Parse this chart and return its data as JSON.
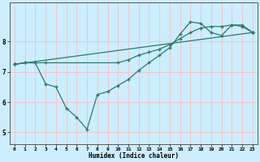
{
  "xlabel": "Humidex (Indice chaleur)",
  "bg_color": "#cceeff",
  "grid_color": "#f5c0c0",
  "line_color": "#2d7a6a",
  "xlim": [
    -0.5,
    23.5
  ],
  "ylim": [
    4.6,
    9.3
  ],
  "xticks": [
    0,
    1,
    2,
    3,
    4,
    5,
    6,
    7,
    8,
    9,
    10,
    11,
    12,
    13,
    14,
    15,
    16,
    17,
    18,
    19,
    20,
    21,
    22,
    23
  ],
  "yticks": [
    5,
    6,
    7,
    8
  ],
  "line1_x": [
    0,
    1,
    2,
    3,
    4,
    5,
    6,
    7,
    8,
    9,
    10,
    11,
    12,
    13,
    14,
    15,
    16,
    17,
    18,
    19,
    20,
    21,
    22,
    23
  ],
  "line1_y": [
    7.25,
    7.3,
    7.3,
    6.6,
    6.5,
    5.8,
    5.5,
    5.1,
    6.25,
    6.35,
    6.55,
    6.75,
    7.05,
    7.3,
    7.55,
    7.8,
    8.25,
    8.65,
    8.6,
    8.3,
    8.2,
    8.55,
    8.5,
    8.3
  ],
  "line2_x": [
    0,
    1,
    2,
    3,
    10,
    11,
    12,
    13,
    14,
    15,
    16,
    17,
    18,
    19,
    20,
    21,
    22,
    23
  ],
  "line2_y": [
    7.25,
    7.3,
    7.3,
    7.3,
    7.3,
    7.4,
    7.55,
    7.65,
    7.75,
    7.9,
    8.1,
    8.3,
    8.45,
    8.5,
    8.5,
    8.55,
    8.55,
    8.3
  ],
  "line3_x": [
    0,
    23
  ],
  "line3_y": [
    7.25,
    8.3
  ]
}
